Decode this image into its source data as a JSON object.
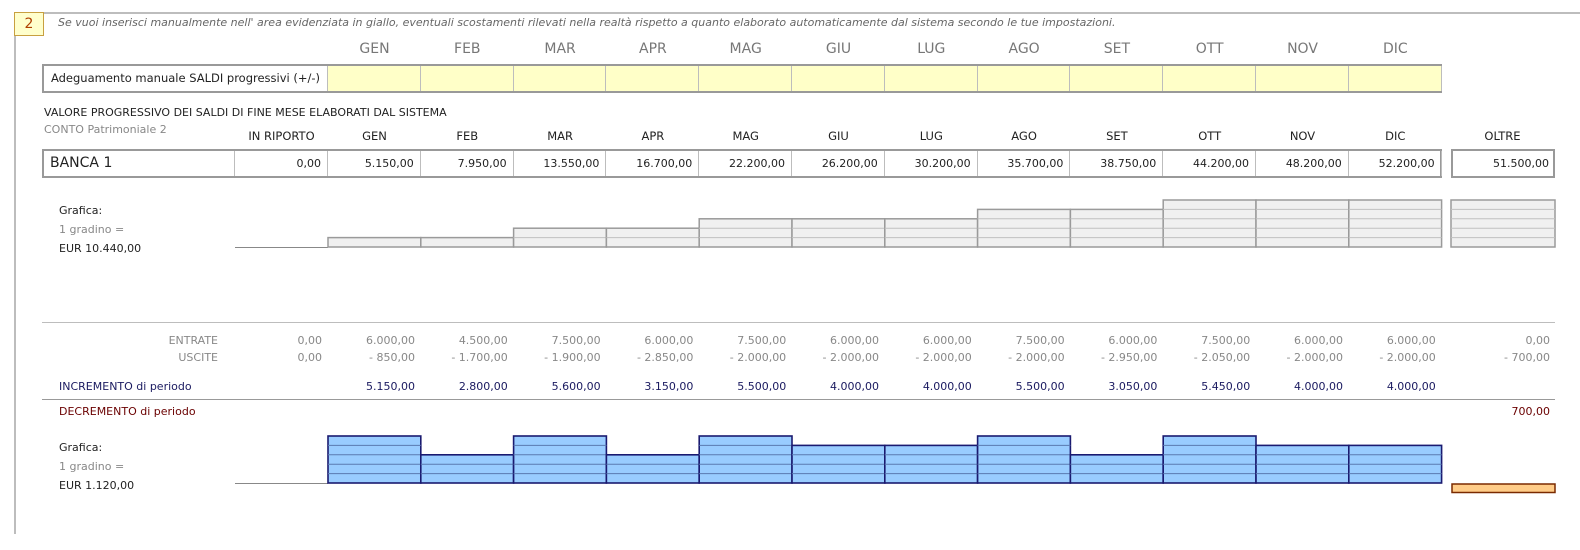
{
  "section_number": "2",
  "instruction": "Se vuoi inserisci manualmente nell' area evidenziata in giallo, eventuali scostamenti rilevati nella realtà rispetto a quanto elaborato automaticamente dal sistema secondo le tue impostazioni.",
  "months": [
    "GEN",
    "FEB",
    "MAR",
    "APR",
    "MAG",
    "GIU",
    "LUG",
    "AGO",
    "SET",
    "OTT",
    "NOV",
    "DIC"
  ],
  "manual_adjust_label": "Adeguamento manuale SALDI progressivi (+/-)",
  "progressive_title": "VALORE PROGRESSIVO DEI SALDI DI FINE MESE ELABORATI DAL SISTEMA",
  "account_caption": "CONTO Patrimoniale 2",
  "in_riporto_label": "IN RIPORTO",
  "oltre_label": "OLTRE",
  "account_name": "BANCA 1",
  "in_riporto_value": "0,00",
  "balances": [
    "5.150,00",
    "7.950,00",
    "13.550,00",
    "16.700,00",
    "22.200,00",
    "26.200,00",
    "30.200,00",
    "35.700,00",
    "38.750,00",
    "44.200,00",
    "48.200,00",
    "52.200,00"
  ],
  "oltre_value": "51.500,00",
  "chart1": {
    "label_title": "Grafica:",
    "label_step": "1 gradino =",
    "label_value": "EUR 10.440,00",
    "steps": [
      1,
      1,
      2,
      2,
      3,
      3,
      3,
      4,
      4,
      5,
      5,
      5
    ],
    "oltre_steps": 5
  },
  "entrate_label": "ENTRATE",
  "uscite_label": "USCITE",
  "entrate": {
    "in_riporto": "0,00",
    "months": [
      "6.000,00",
      "4.500,00",
      "7.500,00",
      "6.000,00",
      "7.500,00",
      "6.000,00",
      "6.000,00",
      "7.500,00",
      "6.000,00",
      "7.500,00",
      "6.000,00",
      "6.000,00"
    ],
    "oltre": "0,00"
  },
  "uscite": {
    "in_riporto": "0,00",
    "months": [
      "- 850,00",
      "- 1.700,00",
      "- 1.900,00",
      "- 2.850,00",
      "- 2.000,00",
      "- 2.000,00",
      "- 2.000,00",
      "- 2.000,00",
      "- 2.950,00",
      "- 2.050,00",
      "- 2.000,00",
      "- 2.000,00"
    ],
    "oltre": "- 700,00"
  },
  "incremento_label": "INCREMENTO di periodo",
  "incremento": [
    "5.150,00",
    "2.800,00",
    "5.600,00",
    "3.150,00",
    "5.500,00",
    "4.000,00",
    "4.000,00",
    "5.500,00",
    "3.050,00",
    "5.450,00",
    "4.000,00",
    "4.000,00"
  ],
  "decremento_label": "DECREMENTO di periodo",
  "decremento_oltre": "700,00",
  "chart2": {
    "label_title": "Grafica:",
    "label_step": "1 gradino =",
    "label_value": "EUR 1.120,00",
    "steps": [
      5,
      3,
      5,
      3,
      5,
      4,
      4,
      5,
      3,
      5,
      4,
      4
    ],
    "oltre_decrement_steps": 1
  },
  "colors": {
    "yellow": "#ffffc8",
    "blue_bar": "#99ccff",
    "blue_border": "#1a1a70",
    "orange_bar": "#ffcc88",
    "gray_bar": "#f0f0f0"
  }
}
